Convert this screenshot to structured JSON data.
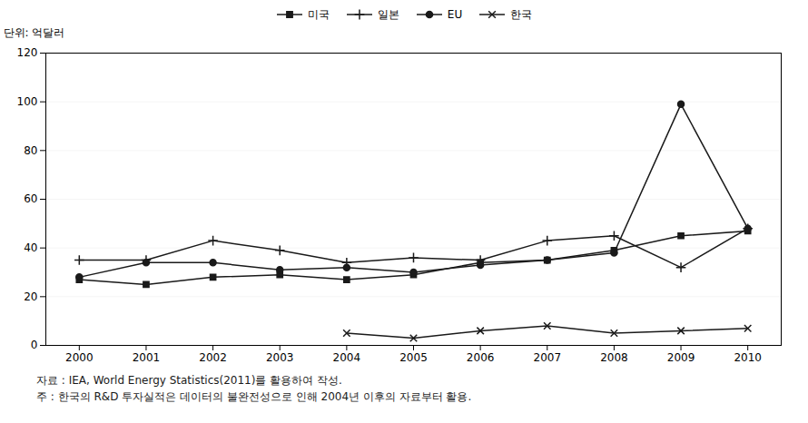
{
  "chart_data": {
    "type": "line",
    "ylabel": "단위: 억달러",
    "x": [
      2000,
      2001,
      2002,
      2003,
      2004,
      2005,
      2006,
      2007,
      2008,
      2009,
      2010
    ],
    "series": [
      {
        "name": "미국",
        "color": "#1a1a1a",
        "marker": "square",
        "values": [
          27,
          25,
          28,
          29,
          27,
          29,
          34,
          35,
          39,
          45,
          47
        ]
      },
      {
        "name": "일본",
        "color": "#1a1a1a",
        "marker": "plus",
        "values": [
          35,
          35,
          43,
          39,
          34,
          36,
          35,
          43,
          45,
          32,
          48
        ]
      },
      {
        "name": "EU",
        "color": "#1a1a1a",
        "marker": "circle",
        "values": [
          28,
          34,
          34,
          31,
          32,
          30,
          33,
          35,
          38,
          99,
          48
        ]
      },
      {
        "name": "한국",
        "color": "#1a1a1a",
        "marker": "times",
        "values": [
          null,
          null,
          null,
          null,
          5,
          3,
          6,
          8,
          5,
          6,
          7
        ]
      }
    ],
    "xlim": [
      1999.5,
      2010.5
    ],
    "xticks": [
      2000,
      2001,
      2002,
      2003,
      2004,
      2005,
      2006,
      2007,
      2008,
      2009,
      2010
    ],
    "ylim": [
      0,
      120
    ],
    "yticks": [
      0,
      20,
      40,
      60,
      80,
      100,
      120
    ],
    "grid": true,
    "legend": "top",
    "annotations": [
      "자료 : IEA, World Energy Statistics(2011)를 활용하여 작성.",
      "주 : 한국의 R&D 투자실적은 데이터의 불완전성으로 인해 2004년 이후의 자료부터 활용."
    ]
  }
}
